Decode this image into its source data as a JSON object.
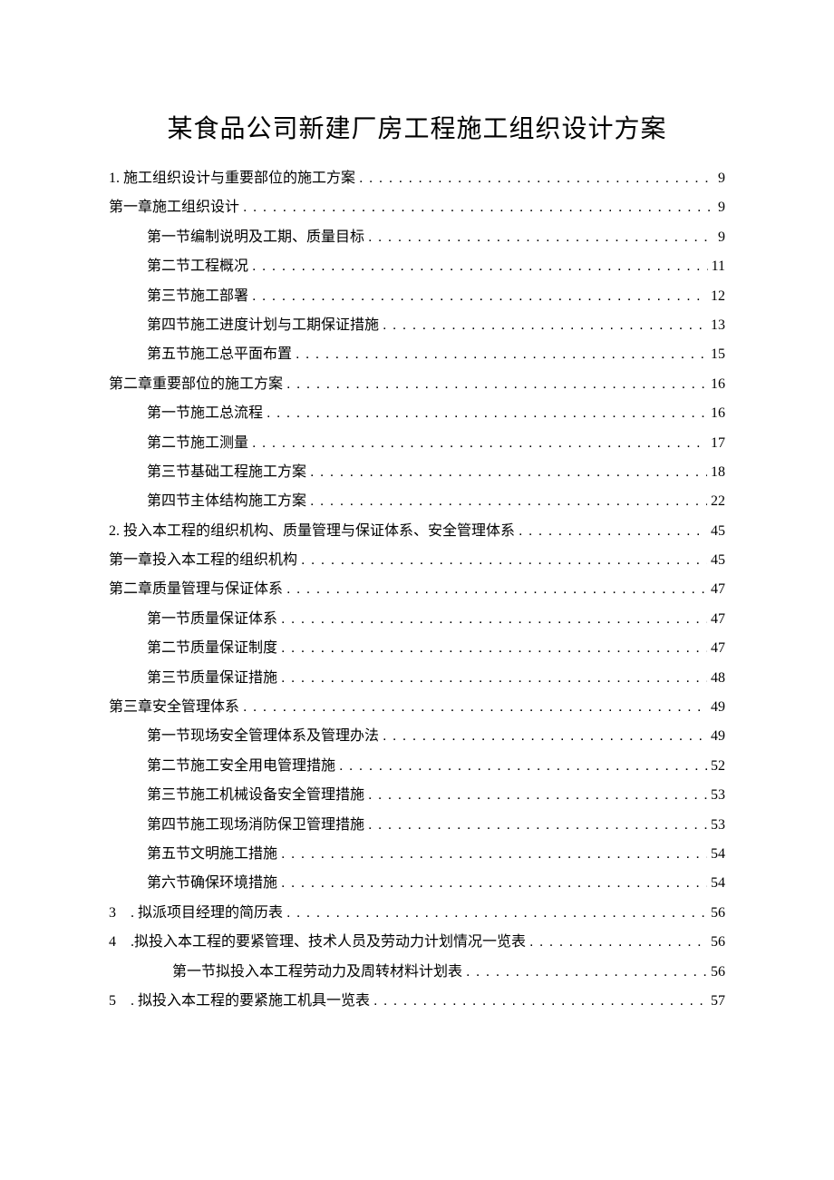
{
  "title": "某食品公司新建厂房工程施工组织设计方案",
  "entries": [
    {
      "level": 1,
      "label": "1. 施工组织设计与重要部位的施工方案",
      "page": "9"
    },
    {
      "level": 1,
      "label": "第一章施工组织设计",
      "page": "9"
    },
    {
      "level": 2,
      "label": "第一节编制说明及工期、质量目标",
      "page": "9"
    },
    {
      "level": 2,
      "label": "第二节工程概况",
      "page": "11"
    },
    {
      "level": 2,
      "label": "第三节施工部署",
      "page": "12"
    },
    {
      "level": 2,
      "label": "第四节施工进度计划与工期保证措施",
      "page": "13"
    },
    {
      "level": 2,
      "label": "第五节施工总平面布置",
      "page": "15"
    },
    {
      "level": 1,
      "label": "第二章重要部位的施工方案",
      "page": "16"
    },
    {
      "level": 2,
      "label": "第一节施工总流程",
      "page": "16"
    },
    {
      "level": 2,
      "label": "第二节施工测量",
      "page": "17"
    },
    {
      "level": 2,
      "label": "第三节基础工程施工方案",
      "page": "18"
    },
    {
      "level": 2,
      "label": "第四节主体结构施工方案",
      "page": "22"
    },
    {
      "level": 1,
      "label": "2. 投入本工程的组织机构、质量管理与保证体系、安全管理体系",
      "page": "45"
    },
    {
      "level": 1,
      "label": "第一章投入本工程的组织机构",
      "page": "45"
    },
    {
      "level": 1,
      "label": "第二章质量管理与保证体系",
      "page": "47"
    },
    {
      "level": 2,
      "label": "第一节质量保证体系",
      "page": "47"
    },
    {
      "level": 2,
      "label": "第二节质量保证制度",
      "page": "47"
    },
    {
      "level": 2,
      "label": "第三节质量保证措施",
      "page": "48"
    },
    {
      "level": 1,
      "label": "第三章安全管理体系",
      "page": "49"
    },
    {
      "level": 2,
      "label": "第一节现场安全管理体系及管理办法",
      "page": "49"
    },
    {
      "level": 2,
      "label": "第二节施工安全用电管理措施",
      "page": "52"
    },
    {
      "level": 2,
      "label": "第三节施工机械设备安全管理措施",
      "page": "53"
    },
    {
      "level": 2,
      "label": "第四节施工现场消防保卫管理措施",
      "page": "53"
    },
    {
      "level": 2,
      "label": "第五节文明施工措施",
      "page": "54"
    },
    {
      "level": 2,
      "label": "第六节确保环境措施",
      "page": "54"
    },
    {
      "level": 1,
      "label": "3　. 拟派项目经理的简历表 ",
      "page": "56"
    },
    {
      "level": 1,
      "label": "4　.拟投入本工程的要紧管理、技术人员及劳动力计划情况一览表 ",
      "page": "56"
    },
    {
      "level": 3,
      "label": "第一节拟投入本工程劳动力及周转材料计划表 ",
      "page": "56"
    },
    {
      "level": 1,
      "label": "5　. 拟投入本工程的要紧施工机具一览表 ",
      "page": "57"
    }
  ]
}
